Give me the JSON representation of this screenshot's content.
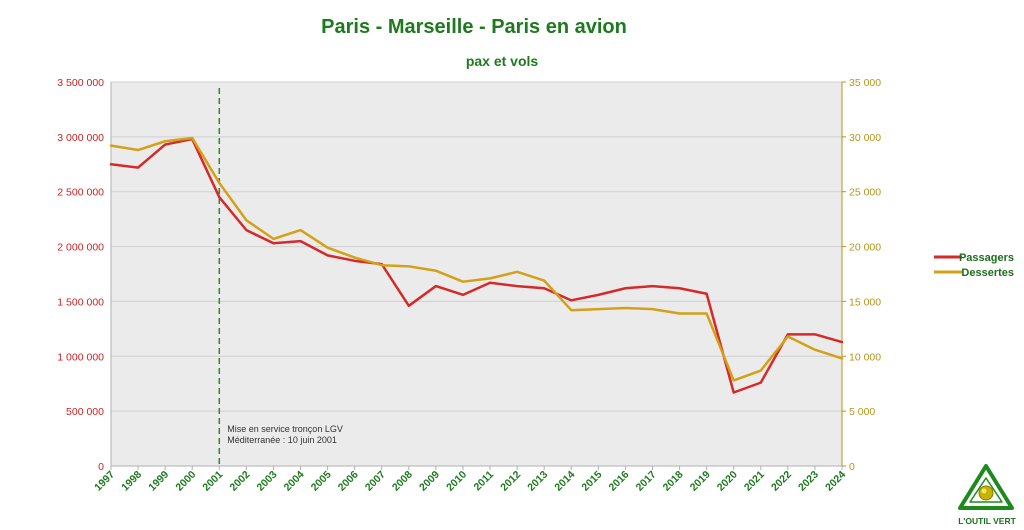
{
  "chart_data": {
    "type": "line",
    "title": "Paris - Marseille - Paris en avion",
    "subtitle": "pax et vols",
    "categories": [
      "1997",
      "1998",
      "1999",
      "2000",
      "2001",
      "2002",
      "2003",
      "2004",
      "2005",
      "2006",
      "2007",
      "2008",
      "2009",
      "2010",
      "2011",
      "2012",
      "2013",
      "2014",
      "2015",
      "2016",
      "2017",
      "2018",
      "2019",
      "2020",
      "2021",
      "2022",
      "2023",
      "2024"
    ],
    "series": [
      {
        "name": "Passagers",
        "axis": "left",
        "color": "#d42a2a",
        "values": [
          2750000,
          2720000,
          2930000,
          2980000,
          2450000,
          2150000,
          2030000,
          2050000,
          1920000,
          1870000,
          1840000,
          1460000,
          1640000,
          1560000,
          1670000,
          1640000,
          1620000,
          1510000,
          1560000,
          1620000,
          1640000,
          1620000,
          1570000,
          670000,
          760000,
          1200000,
          1200000,
          1130000
        ]
      },
      {
        "name": "Dessertes",
        "axis": "right",
        "color": "#d4a017",
        "values": [
          29200,
          28800,
          29600,
          29900,
          25800,
          22400,
          20700,
          21500,
          19900,
          19000,
          18300,
          18200,
          17800,
          16800,
          17100,
          17700,
          16900,
          14200,
          14300,
          14400,
          14300,
          13900,
          13900,
          7800,
          8700,
          11800,
          10600,
          9800
        ]
      }
    ],
    "y_left": {
      "min": 0,
      "max": 3500000,
      "ticks": [
        "0",
        "500 000",
        "1 000 000",
        "1 500 000",
        "2 000 000",
        "2 500 000",
        "3 000 000",
        "3 500 000"
      ],
      "color": "#cc2222"
    },
    "y_right": {
      "min": 0,
      "max": 35000,
      "ticks": [
        "0",
        "5 000",
        "10 000",
        "15 000",
        "20 000",
        "25 000",
        "30 000",
        "35 000"
      ],
      "color": "#b8941a"
    },
    "grid": true,
    "legend": "right",
    "annotation": {
      "category": "2001",
      "lines": [
        "Mise en service tronçon LGV",
        "Méditerranée : 10 juin 2001"
      ],
      "color": "#2a8a2a"
    }
  },
  "logo": {
    "text": "L'OUTIL VERT"
  },
  "colors": {
    "title": "#1e7a1e",
    "x_ticks": "#1e7a1e",
    "legend_text": "#1e6e1e",
    "plot_bg": "#ebebeb",
    "grid": "#cfcfcf"
  }
}
